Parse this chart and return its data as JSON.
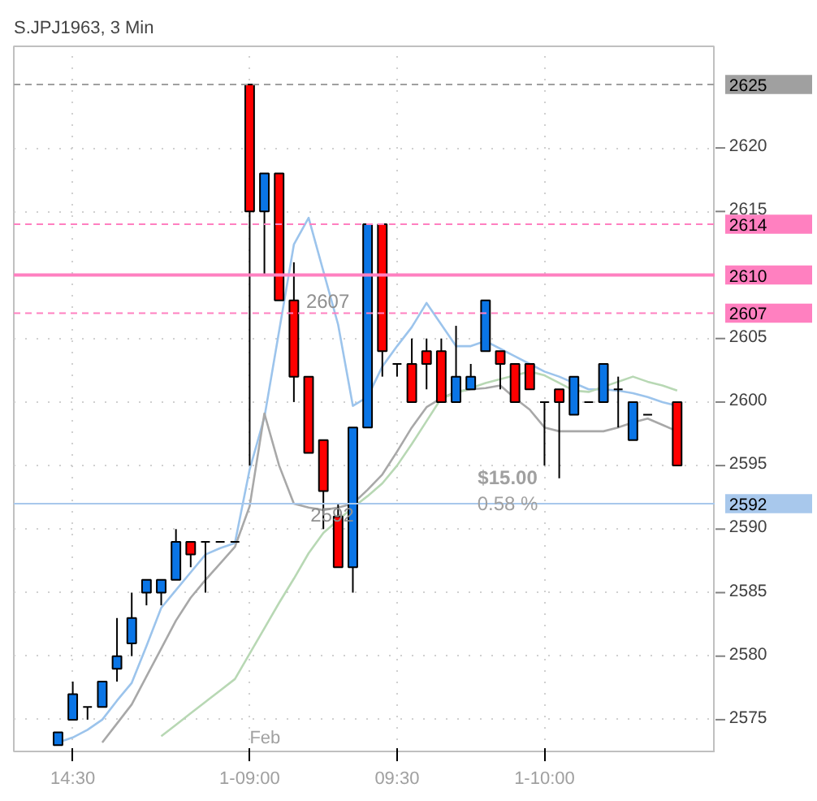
{
  "chart_data": {
    "type": "candlestick",
    "title": "S.JPJ1963, 3 Min",
    "categories": [
      null,
      "14:30",
      null,
      null,
      null,
      null,
      null,
      null,
      null,
      null,
      null,
      null,
      null,
      "1-09:00",
      null,
      null,
      null,
      null,
      null,
      null,
      null,
      null,
      null,
      "09:30",
      null,
      null,
      null,
      null,
      null,
      null,
      null,
      null,
      null,
      "1-10:00",
      null,
      null,
      null,
      null,
      null,
      null,
      null,
      null,
      null
    ],
    "ohlc": [
      [
        2573,
        2574,
        2573,
        2574
      ],
      [
        2575,
        2578,
        2575,
        2577
      ],
      [
        2576,
        2576,
        2575,
        2576
      ],
      [
        2576,
        2578,
        2576,
        2578
      ],
      [
        2579,
        2583,
        2578,
        2580
      ],
      [
        2581,
        2585,
        2580,
        2583
      ],
      [
        2585,
        2586,
        2584,
        2586
      ],
      [
        2585,
        2586,
        2584,
        2586
      ],
      [
        2586,
        2590,
        2586,
        2589
      ],
      [
        2589,
        2589,
        2587,
        2588
      ],
      [
        2589,
        2589,
        2585,
        2589
      ],
      [
        2589,
        2589,
        2589,
        2589
      ],
      [
        2589,
        2589,
        2589,
        2589
      ],
      [
        2625,
        2625,
        2595,
        2615
      ],
      [
        2615,
        2618,
        2610,
        2618
      ],
      [
        2618,
        2618,
        2608,
        2608
      ],
      [
        2608,
        2611,
        2600,
        2602
      ],
      [
        2602,
        2602,
        2596,
        2596
      ],
      [
        2597,
        2597,
        2590,
        2593
      ],
      [
        2591,
        2592,
        2587,
        2587
      ],
      [
        2587,
        2598,
        2585,
        2598
      ],
      [
        2598,
        2614,
        2598,
        2614
      ],
      [
        2614,
        2614,
        2602,
        2604
      ],
      [
        2603,
        2603,
        2602,
        2603
      ],
      [
        2603,
        2605,
        2600,
        2600
      ],
      [
        2604,
        2605,
        2601,
        2603
      ],
      [
        2604,
        2605,
        2600,
        2600
      ],
      [
        2600,
        2606,
        2600,
        2602
      ],
      [
        2601,
        2603,
        2601,
        2602
      ],
      [
        2604,
        2608,
        2604,
        2608
      ],
      [
        2604,
        2604,
        2601,
        2603
      ],
      [
        2603,
        2603,
        2600,
        2600
      ],
      [
        2603,
        2603,
        2601,
        2601
      ],
      [
        2600,
        2600,
        2595,
        2600
      ],
      [
        2601,
        2601,
        2594,
        2600
      ],
      [
        2599,
        2602,
        2599,
        2602
      ],
      [
        2600,
        2600,
        2600,
        2600
      ],
      [
        2600,
        2603,
        2600,
        2603
      ],
      [
        2601,
        2602,
        2598,
        2601
      ],
      [
        2597,
        2600,
        2597,
        2600
      ],
      [
        2599,
        2599,
        2599,
        2599
      ],
      null,
      [
        2600,
        2600,
        2595,
        2595
      ]
    ],
    "colors": [
      "#0a75e6",
      "#0a75e6",
      "#000000",
      "#0a75e6",
      "#0a75e6",
      "#0a75e6",
      "#0a75e6",
      "#0a75e6",
      "#0a75e6",
      "#ff0000",
      "#000000",
      "#000000",
      "#000000",
      "#ff0000",
      "#0a75e6",
      "#ff0000",
      "#ff0000",
      "#ff0000",
      "#ff0000",
      "#ff0000",
      "#0a75e6",
      "#0a75e6",
      "#ff0000",
      "#000000",
      "#ff0000",
      "#ff0000",
      "#ff0000",
      "#0a75e6",
      "#0a75e6",
      "#0a75e6",
      "#ff0000",
      "#ff0000",
      "#ff0000",
      "#000000",
      "#ff0000",
      "#0a75e6",
      "#000000",
      "#0a75e6",
      "#000000",
      "#0a75e6",
      "#000000",
      null,
      "#ff0000"
    ],
    "series": [
      {
        "type": "line",
        "color": "#9cc4ec",
        "values": [
          2573.2,
          2573.6,
          2574.2,
          2575.0,
          2576.5,
          2577.9,
          2580.8,
          2583.8,
          2585.2,
          2586.6,
          2588.0,
          2588.5,
          2588.9,
          2594.7,
          2598.8,
          2605.6,
          2612.4,
          2614.5,
          2610.3,
          2606.1,
          2599.7,
          2600.4,
          2602.8,
          2604.4,
          2605.9,
          2607.8,
          2606.1,
          2604.4,
          2604.4,
          2604.8,
          2604.2,
          2603.6,
          2603.0,
          2602.4,
          2602.0,
          2601.5,
          2601.0,
          2601.0,
          2600.9,
          2600.7,
          2600.4,
          2600.0,
          2599.7
        ]
      },
      {
        "type": "line",
        "color": "#a8a8a8",
        "values": [
          null,
          null,
          null,
          2573.2,
          2574.7,
          2576.2,
          2578.4,
          2580.6,
          2582.8,
          2584.6,
          2586.0,
          2587.3,
          2588.6,
          2591.8,
          2599.1,
          2595.0,
          2592.0,
          2591.7,
          2591.5,
          2591.7,
          2592.0,
          2593.1,
          2594.3,
          2596.1,
          2598.0,
          2599.6,
          2600.3,
          2600.8,
          2601.0,
          2601.1,
          2601.3,
          2600.3,
          2599.4,
          2598.0,
          2597.7,
          2597.7,
          2597.7,
          2597.7,
          2598.0,
          2598.4,
          2598.7,
          2598.2,
          2597.7
        ]
      },
      {
        "type": "line",
        "color": "#b8d8b4",
        "values": [
          null,
          null,
          null,
          null,
          null,
          null,
          null,
          2573.7,
          2574.6,
          2575.5,
          2576.4,
          2577.3,
          2578.2,
          2580.2,
          2582.2,
          2584.2,
          2586.1,
          2588.1,
          2589.7,
          2590.7,
          2591.7,
          2592.6,
          2593.6,
          2595.0,
          2596.7,
          2598.5,
          2600.3,
          2600.7,
          2601.1,
          2601.5,
          2601.8,
          2602.1,
          2602.4,
          2602.1,
          2601.5,
          2600.9,
          2600.8,
          2601.2,
          2601.6,
          2602.0,
          2601.6,
          2601.3,
          2600.9
        ]
      }
    ],
    "ylim": [
      2572.5,
      2628
    ],
    "yticks": [
      2575,
      2580,
      2585,
      2590,
      2595,
      2600,
      2605,
      2615,
      2620
    ],
    "grid": true,
    "ref_lines": [
      {
        "axis": "y",
        "value": 2625,
        "label": "2625",
        "color": "#a0a0a0",
        "line_style": "dashed"
      },
      {
        "axis": "y",
        "value": 2614,
        "label": "2614",
        "color": "#ff80c0",
        "line_style": "dashed"
      },
      {
        "axis": "y",
        "value": 2610,
        "label": "2610",
        "color": "#ff80c0",
        "line_style": "solid"
      },
      {
        "axis": "y",
        "value": 2607,
        "label": "2607",
        "color": "#ff80c0",
        "line_style": "dashed"
      },
      {
        "axis": "y",
        "value": 2592,
        "label": "2592",
        "color": "#a8c8ec",
        "line_style": "solid"
      }
    ],
    "annotations": [
      "2607",
      "2592",
      "$15.00",
      "0.58 %",
      "Feb"
    ]
  }
}
